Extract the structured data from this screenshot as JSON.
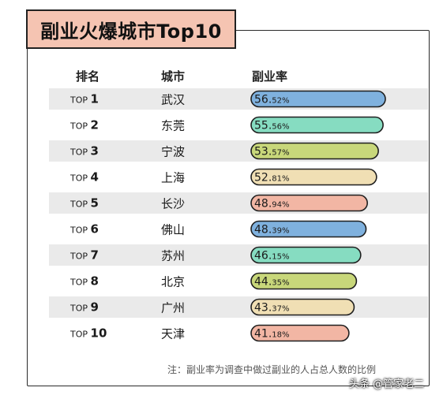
{
  "title": "副业火爆城市Top10",
  "headers": {
    "rank": "排名",
    "city": "城市",
    "rate": "副业率"
  },
  "rank_prefix": "TOP",
  "note": "注：副业率为调查中做过副业的人占总人数的比例",
  "watermark": "头条 @管家老二",
  "colors": {
    "row_stripe": "#eaeaea",
    "title_bg": "#f5c4b2",
    "bar_outline": "#1f1f1f",
    "bar_palette": [
      "#7fb1de",
      "#86dcc1",
      "#c8d77a",
      "#f0dfb4",
      "#f2b6a4"
    ]
  },
  "chart_data": {
    "type": "bar",
    "orientation": "horizontal",
    "title": "副业火爆城市Top10",
    "xlabel": "",
    "ylabel": "副业率",
    "unit": "%",
    "xlim": [
      0,
      60
    ],
    "categories": [
      "武汉",
      "东莞",
      "宁波",
      "上海",
      "长沙",
      "佛山",
      "苏州",
      "北京",
      "广州",
      "天津"
    ],
    "ranks": [
      "1",
      "2",
      "3",
      "4",
      "5",
      "6",
      "7",
      "8",
      "9",
      "10"
    ],
    "values": [
      56.52,
      55.56,
      53.57,
      52.81,
      48.94,
      48.39,
      46.15,
      44.35,
      43.37,
      41.18
    ],
    "value_int": [
      "56.",
      "55.",
      "53.",
      "52.",
      "48.",
      "48.",
      "46.",
      "44.",
      "43.",
      "41."
    ],
    "value_dec": [
      "52%",
      "56%",
      "57%",
      "81%",
      "94%",
      "39%",
      "15%",
      "35%",
      "37%",
      "18%"
    ],
    "bar_colors": [
      "#7fb1de",
      "#86dcc1",
      "#c8d77a",
      "#f0dfb4",
      "#f2b6a4",
      "#7fb1de",
      "#86dcc1",
      "#c8d77a",
      "#f0dfb4",
      "#f2b6a4"
    ]
  }
}
